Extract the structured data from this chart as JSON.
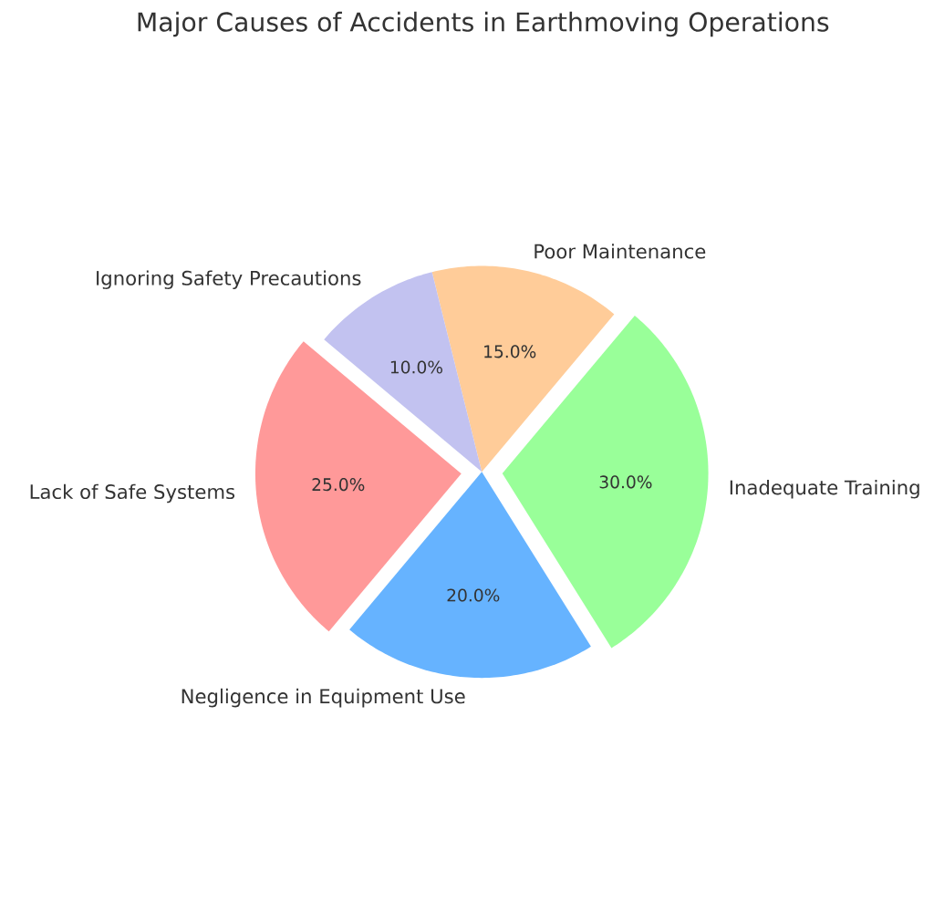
{
  "chart_data": {
    "type": "pie",
    "title": "Major Causes of Accidents in Earthmoving Operations",
    "categories": [
      "Lack of Safe Systems",
      "Negligence in Equipment Use",
      "Inadequate Training",
      "Poor Maintenance",
      "Ignoring Safety Precautions"
    ],
    "values": [
      25,
      20,
      30,
      15,
      10
    ],
    "colors": [
      "#ff9999",
      "#66b3ff",
      "#99ff99",
      "#ffcc99",
      "#c2c2f0"
    ],
    "value_labels": [
      "25.0%",
      "20.0%",
      "30.0%",
      "15.0%",
      "10.0%"
    ]
  }
}
